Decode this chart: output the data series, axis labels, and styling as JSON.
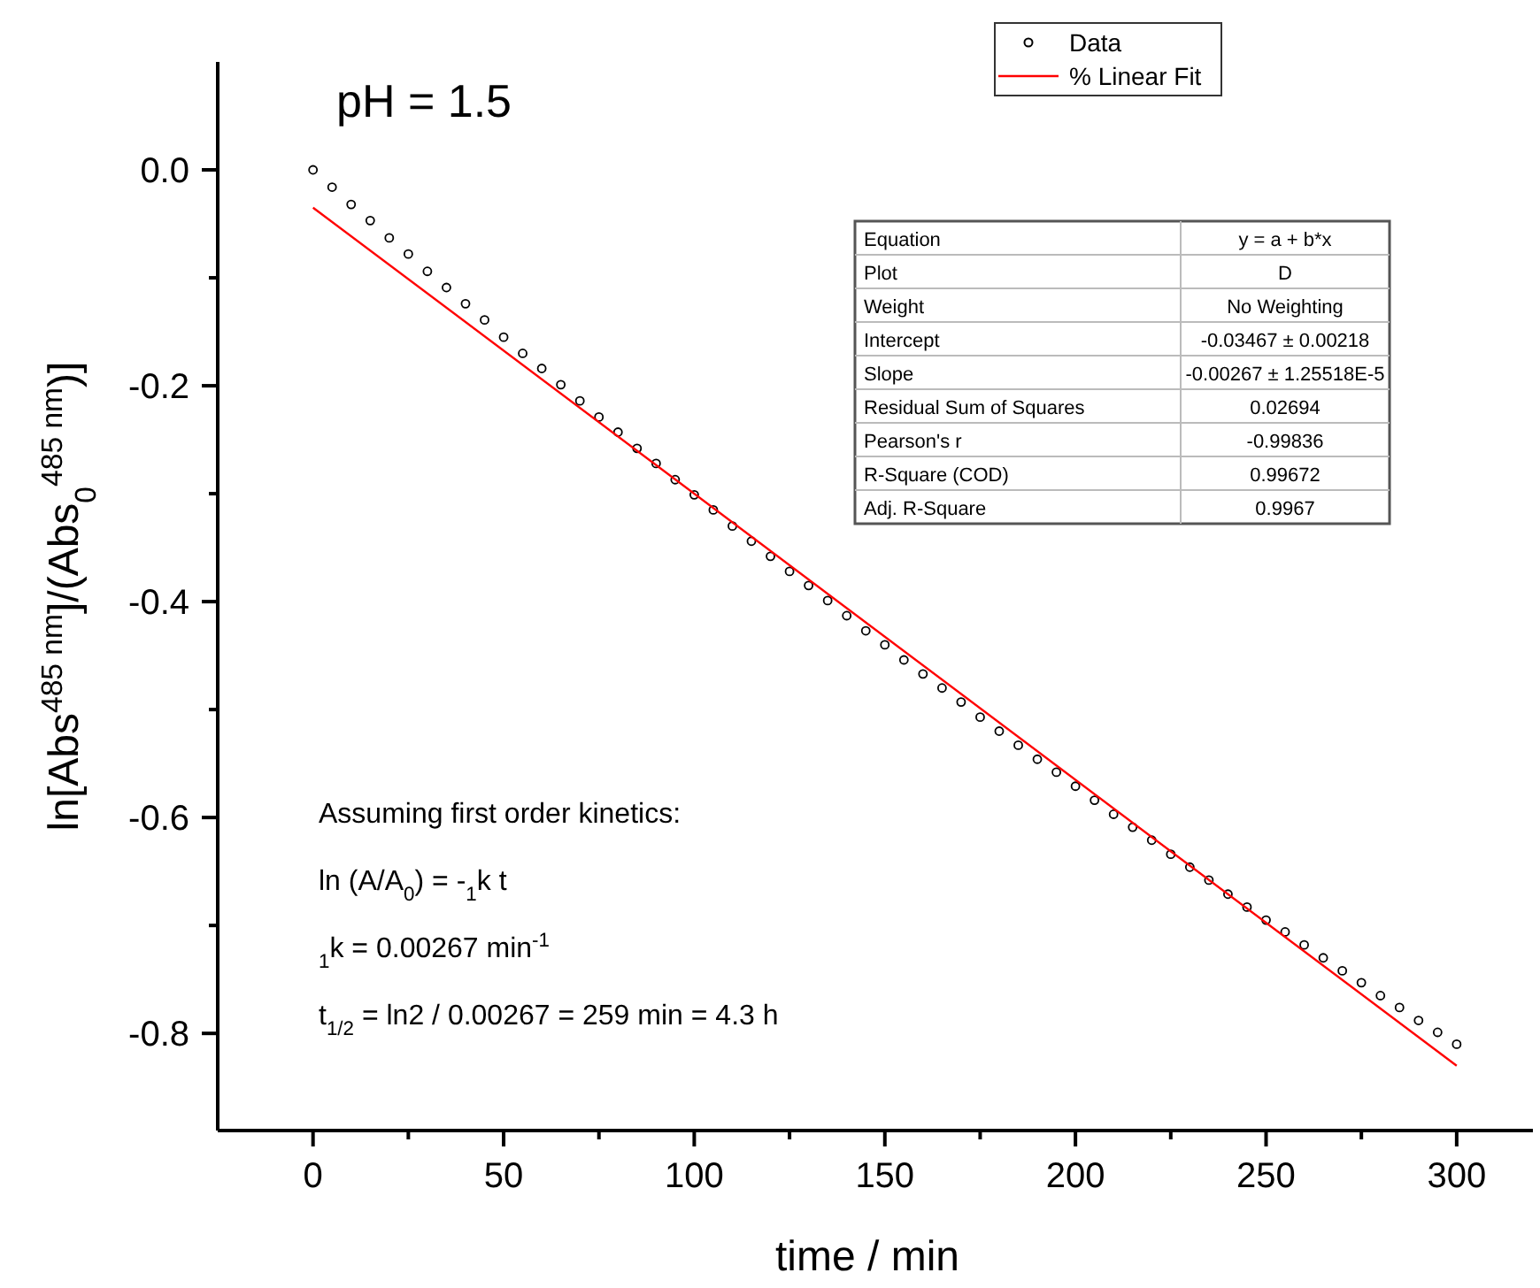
{
  "chart_data": {
    "type": "scatter",
    "xlabel": "time / min",
    "ylabel": "ln[Abs$^{485 nm}$]/(Abs$_{0}$$^{485 nm}$)]",
    "xlim": [
      -25,
      320
    ],
    "ylim": [
      -0.89,
      0.1
    ],
    "xticks": [
      0,
      {
        "value": 25,
        "label": null
      },
      50,
      {
        "value": 75,
        "label": null
      },
      100,
      {
        "value": 125,
        "label": null
      },
      150,
      {
        "value": 175,
        "label": null
      },
      200,
      {
        "value": 225,
        "label": null
      },
      250,
      {
        "value": 275,
        "label": null
      },
      300
    ],
    "yticks": [
      {
        "value": 0,
        "label": "0.0"
      },
      {
        "value": -0.1,
        "label": null
      },
      {
        "value": -0.2,
        "label": "-0.2"
      },
      {
        "value": -0.3,
        "label": null
      },
      {
        "value": -0.4,
        "label": "-0.4"
      },
      {
        "value": -0.5,
        "label": null
      },
      {
        "value": -0.6,
        "label": "-0.6"
      },
      {
        "value": -0.7,
        "label": null
      },
      {
        "value": -0.8,
        "label": "-0.8"
      }
    ],
    "grid": false,
    "legend": "top right",
    "marker": "circle",
    "series": [
      {
        "name": "Data",
        "color": "#000000",
        "x": [
          0,
          5,
          10,
          15,
          20,
          25,
          30,
          35,
          40,
          45,
          50,
          55,
          60,
          65,
          70,
          75,
          80,
          85,
          90,
          95,
          100,
          105,
          110,
          115,
          120,
          125,
          130,
          135,
          140,
          145,
          150,
          155,
          160,
          165,
          170,
          175,
          180,
          185,
          190,
          195,
          200,
          205,
          210,
          215,
          220,
          225,
          230,
          235,
          240,
          245,
          250,
          255,
          260,
          265,
          270,
          275,
          280,
          285,
          290,
          295,
          300
        ],
        "values": [
          0,
          -0.016,
          -0.032,
          -0.047,
          -0.063,
          -0.078,
          -0.094,
          -0.109,
          -0.124,
          -0.139,
          -0.155,
          -0.17,
          -0.184,
          -0.199,
          -0.214,
          -0.229,
          -0.243,
          -0.258,
          -0.272,
          -0.287,
          -0.301,
          -0.315,
          -0.33,
          -0.344,
          -0.358,
          -0.372,
          -0.385,
          -0.399,
          -0.413,
          -0.427,
          -0.44,
          -0.454,
          -0.467,
          -0.48,
          -0.493,
          -0.507,
          -0.52,
          -0.533,
          -0.546,
          -0.558,
          -0.571,
          -0.584,
          -0.597,
          -0.609,
          -0.621,
          -0.634,
          -0.646,
          -0.658,
          -0.671,
          -0.683,
          -0.695,
          -0.706,
          -0.718,
          -0.73,
          -0.742,
          -0.753,
          -0.765,
          -0.776,
          -0.788,
          -0.799,
          -0.81
        ]
      },
      {
        "name": "% Linear Fit",
        "type": "line",
        "color": "#ff0000",
        "line_style": "solid",
        "marker": "none",
        "x": [
          0,
          300
        ],
        "values": [
          -0.035,
          -0.83
        ]
      }
    ],
    "annotations": [
      "pH = 1.5",
      "Assuming first order kinetics:",
      "ln (A/A$_{0}$) = -$_{1}$k t",
      "$_{1}$k = 0.00267 min$^{-1}$",
      "t$_{1/2}$ = ln2 / 0.00267 = 259 min = 4.3 h",
      "Equation",
      "y = a + b*x",
      "Plot",
      "D",
      "Weight",
      "No Weighting",
      "Intercept",
      "-0.03467 ± 0.00218",
      "Slope",
      "-0.00267 ± 1.25518E-5",
      "Residual Sum of Squares",
      "0.02694",
      "Pearson's r",
      "-0.99836",
      "R-Square (COD)",
      "0.99672",
      "Adj. R-Square",
      "0.9967"
    ]
  }
}
